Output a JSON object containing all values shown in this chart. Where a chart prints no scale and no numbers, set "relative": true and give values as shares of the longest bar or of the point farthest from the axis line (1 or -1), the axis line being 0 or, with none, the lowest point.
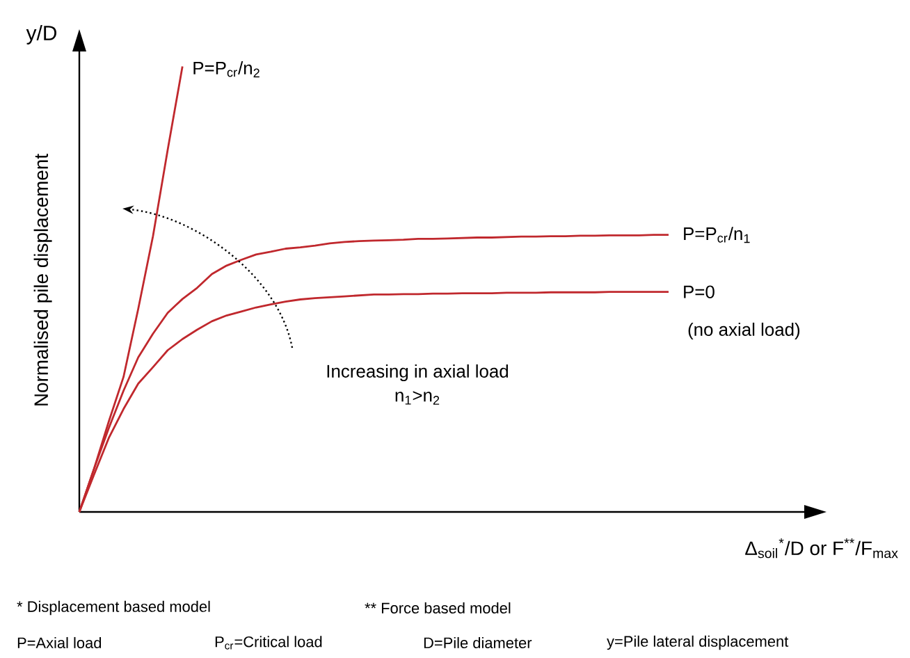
{
  "chart_data": {
    "type": "line",
    "relative": true,
    "ylabel": "Normalised pile displacement",
    "xlabel": "Δ$_{soil}$$^{*}$/D or F$^{**}$/F$_{max}$",
    "categories": [
      null,
      null,
      null,
      null,
      null,
      null,
      null,
      null,
      null,
      null,
      null,
      null,
      null,
      null,
      null,
      null,
      null,
      null,
      null,
      null,
      null,
      null,
      null,
      null,
      null,
      null,
      null,
      null,
      null,
      null,
      null,
      null,
      null,
      null,
      null,
      null,
      null,
      null,
      null,
      null,
      null
    ],
    "series": [
      {
        "name": "P=P$_{cr}$/n$_{2}$",
        "color": "#c0282d",
        "values": [
          0,
          0.097,
          0.203,
          0.303,
          0.456,
          0.619,
          0.813,
          1,
          null,
          null,
          null,
          null,
          null,
          null,
          null,
          null,
          null,
          null,
          null,
          null,
          null,
          null,
          null,
          null,
          null,
          null,
          null,
          null,
          null,
          null,
          null,
          null,
          null,
          null,
          null,
          null,
          null,
          null,
          null,
          null,
          null
        ]
      },
      {
        "name": "P=P$_{cr}$/n$_{1}$",
        "color": "#c0282d",
        "values": [
          0,
          0.097,
          0.188,
          0.272,
          0.347,
          0.4,
          0.447,
          0.478,
          0.503,
          0.534,
          0.553,
          0.566,
          0.578,
          0.584,
          0.591,
          0.594,
          0.598,
          0.603,
          0.606,
          0.608,
          0.609,
          0.61,
          0.611,
          0.613,
          0.613,
          0.614,
          0.615,
          0.616,
          0.616,
          0.617,
          0.618,
          0.618,
          0.619,
          0.619,
          0.62,
          0.62,
          0.621,
          0.621,
          0.621,
          0.622,
          0.622
        ]
      },
      {
        "name": "P=0",
        "color": "#c0282d",
        "values": [
          0,
          0.084,
          0.166,
          0.231,
          0.288,
          0.325,
          0.363,
          0.388,
          0.409,
          0.428,
          0.441,
          0.45,
          0.459,
          0.466,
          0.472,
          0.477,
          0.48,
          0.482,
          0.484,
          0.486,
          0.488,
          0.488,
          0.489,
          0.489,
          0.49,
          0.49,
          0.491,
          0.491,
          0.491,
          0.492,
          0.492,
          0.492,
          0.493,
          0.493,
          0.493,
          0.493,
          0.494,
          0.494,
          0.494,
          0.494,
          0.494
        ]
      }
    ],
    "annotations": [
      "y/D",
      "(no axial load)",
      "Increasing in axial load",
      "n$_{1}$>n$_{2}$",
      "* Displacement based model",
      "** Force based model",
      "P=Axial load",
      "P$_{cr}$=Critical load",
      "D=Pile diameter",
      "y=Pile lateral displacement"
    ],
    "marker": "none",
    "line_style": "solid"
  }
}
